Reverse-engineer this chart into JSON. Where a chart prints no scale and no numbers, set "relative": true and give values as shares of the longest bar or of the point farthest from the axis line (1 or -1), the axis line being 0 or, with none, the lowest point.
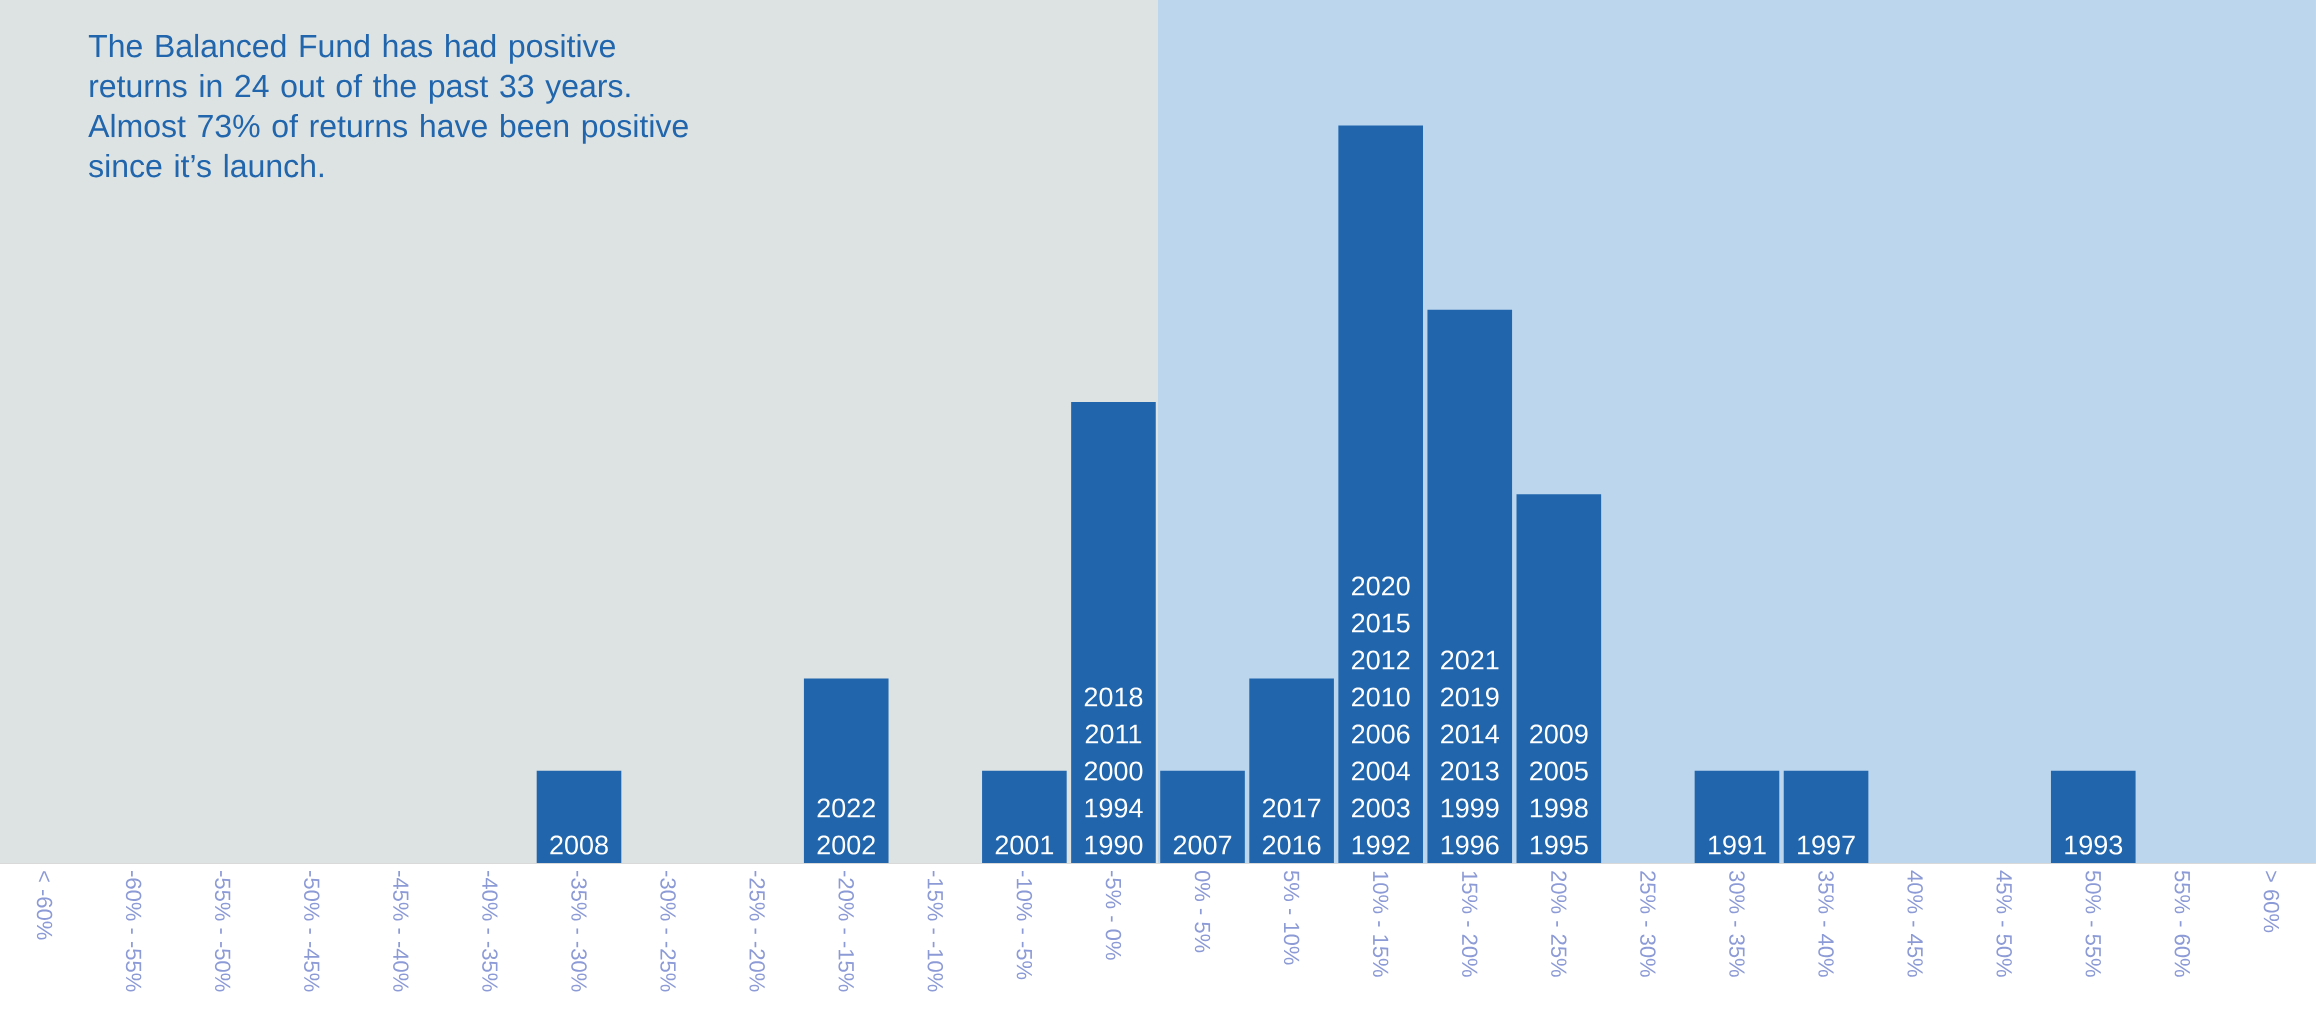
{
  "chart_data": {
    "type": "bar",
    "relative": true,
    "title": "The Balanced Fund has had positive returns in 24 out of the past 33 years. Almost 73% of returns have been positive since it’s launch.",
    "categories": [
      "< -60%",
      "-60% - -55%",
      "-55% - -50%",
      "-50% - -45%",
      "-45% - -40%",
      "-40% - -35%",
      "-35% - -30%",
      "-30% - -25%",
      "-25% - -20%",
      "-20% - -15%",
      "-15% - -10%",
      "-10% - -5%",
      "-5% - 0%",
      "0% - 5%",
      "5% - 10%",
      "10% - 15%",
      "15% - 20%",
      "20% - 25%",
      "25% - 30%",
      "30% - 35%",
      "35% - 40%",
      "40% - 45%",
      "45% - 50%",
      "50% - 55%",
      "55% - 60%",
      "> 60%"
    ],
    "values": [
      0,
      0,
      0,
      0,
      0,
      0,
      0.125,
      0,
      0,
      0.25,
      0,
      0.125,
      0.625,
      0.125,
      0.25,
      1,
      0.75,
      0.5,
      0,
      0.125,
      0.125,
      0,
      0,
      0.125,
      0,
      0
    ],
    "color": "#2166ad",
    "bands": [
      {
        "axis": "x",
        "from": "< -60%",
        "to": "-5% - 0%",
        "color": "#dde3e3"
      },
      {
        "axis": "x",
        "from": "0% - 5%",
        "to": "> 60%",
        "color": "#bbd6ed"
      }
    ],
    "annotations": [
      "2008",
      "2022 2002",
      "2001",
      "2018 2011 2000 1994 1990",
      "2007",
      "2017 2016",
      "2020 2015 2012 2010 2006 2004 2003 1992",
      "2021 2019 2014 2013 1999 1996",
      "2009 2005 1998 1995",
      "1991",
      "1997",
      "1993"
    ]
  }
}
